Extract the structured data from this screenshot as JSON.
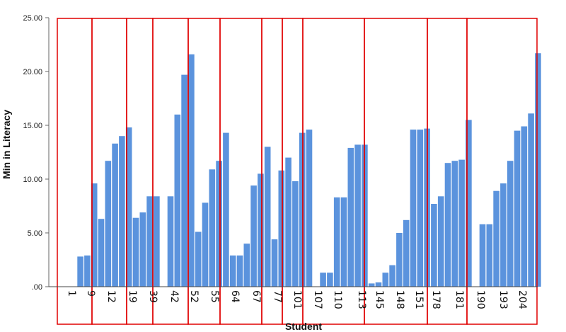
{
  "chart_data": {
    "type": "bar",
    "xlabel": "Student",
    "ylabel": "Min in Literacy",
    "ylim": [
      0,
      25
    ],
    "y_ticks": [
      ".00",
      "5.00",
      "10.00",
      "15.00",
      "20.00",
      "25.00"
    ],
    "x_tick_labels": [
      "1",
      "9",
      "12",
      "19",
      "39",
      "42",
      "52",
      "55",
      "64",
      "67",
      "77",
      "101",
      "107",
      "110",
      "113",
      "145",
      "148",
      "151",
      "178",
      "181",
      "190",
      "193",
      "204"
    ],
    "bar_color": "#5b93dd",
    "box_color": "#e00000",
    "grid": false,
    "values": [
      0.0,
      2.8,
      2.9,
      9.6,
      6.3,
      11.7,
      13.3,
      14.0,
      14.8,
      6.4,
      6.9,
      8.4,
      8.4,
      0.0,
      8.4,
      16.0,
      19.7,
      21.6,
      5.1,
      7.8,
      10.9,
      11.7,
      14.3,
      2.9,
      2.9,
      4.0,
      9.4,
      10.5,
      13.0,
      4.4,
      10.8,
      12.0,
      9.8,
      14.3,
      14.6,
      0.0,
      1.3,
      1.3,
      8.3,
      8.3,
      12.9,
      13.2,
      13.2,
      0.3,
      0.4,
      1.3,
      2.0,
      5.0,
      6.2,
      14.6,
      14.6,
      14.7,
      7.7,
      8.4,
      11.5,
      11.7,
      11.8,
      15.5,
      0.0,
      5.8,
      5.8,
      8.9,
      9.6,
      11.7,
      14.5,
      14.9,
      16.1,
      21.7
    ]
  }
}
